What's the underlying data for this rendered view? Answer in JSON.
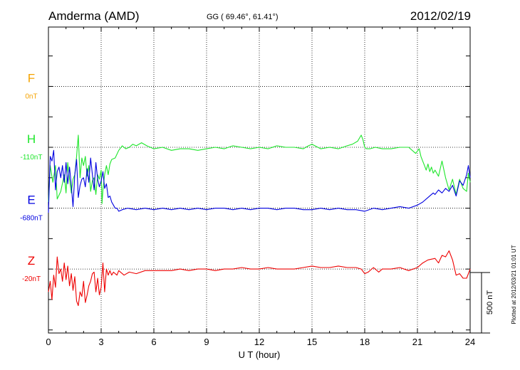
{
  "header": {
    "station": "Amderma (AMD)",
    "coords": "GG ( 69.46°,  61.41°)",
    "date": "2012/02/19"
  },
  "footer_note": "Plotted at 2012/03/21 01:01  UT",
  "chart_data": {
    "type": "line",
    "xlabel": "U T (hour)",
    "xlim": [
      0,
      24
    ],
    "xticks": [
      0,
      3,
      6,
      9,
      12,
      15,
      18,
      21,
      24
    ],
    "ylim": [
      -210,
      795
    ],
    "scale_bar": {
      "label": "500 nT",
      "value": 500
    },
    "grid": true,
    "series": [
      {
        "name": "F",
        "baseline_label": "0nT",
        "color": "#f5a300",
        "offset": 600,
        "values": []
      },
      {
        "name": "H",
        "baseline_label": "-110nT",
        "color": "#1ee62b",
        "offset": 400,
        "x": [
          0,
          0.1,
          0.25,
          0.4,
          0.5,
          0.7,
          0.9,
          1.0,
          1.1,
          1.2,
          1.3,
          1.4,
          1.5,
          1.6,
          1.7,
          1.8,
          1.9,
          2.0,
          2.1,
          2.2,
          2.3,
          2.4,
          2.5,
          2.6,
          2.7,
          2.8,
          2.9,
          3.0,
          3.05,
          3.1,
          3.2,
          3.3,
          3.4,
          3.5,
          3.6,
          3.8,
          4.0,
          4.2,
          4.4,
          4.6,
          4.8,
          5.0,
          5.3,
          5.6,
          6.0,
          6.5,
          7.0,
          7.5,
          8.0,
          8.5,
          9.0,
          9.5,
          10.0,
          10.5,
          11.0,
          11.5,
          12.0,
          12.5,
          13.0,
          13.5,
          14.0,
          14.5,
          14.8,
          15.0,
          15.5,
          16.0,
          16.5,
          17.0,
          17.3,
          17.6,
          17.8,
          17.9,
          18.0,
          18.1,
          18.3,
          18.6,
          19.0,
          19.5,
          20.0,
          20.5,
          20.9,
          21.1,
          21.2,
          21.3,
          21.4,
          21.5,
          21.6,
          21.7,
          21.8,
          21.9,
          22.0,
          22.2,
          22.4,
          22.6,
          22.8,
          23.0,
          23.2,
          23.4,
          23.6,
          23.8,
          23.9,
          24.0
        ],
        "values": [
          -180,
          -60,
          -115,
          -60,
          -170,
          -145,
          -90,
          -150,
          -50,
          -105,
          -150,
          -105,
          -90,
          -30,
          40,
          -100,
          -35,
          -60,
          -30,
          -95,
          -60,
          -145,
          -110,
          -100,
          -155,
          -90,
          -105,
          -75,
          -185,
          -140,
          -90,
          -60,
          -90,
          -55,
          -40,
          -35,
          -10,
          5,
          -5,
          0,
          10,
          5,
          15,
          5,
          -5,
          0,
          -10,
          -5,
          -5,
          -10,
          -5,
          0,
          -5,
          5,
          0,
          -5,
          0,
          -5,
          5,
          0,
          0,
          -5,
          5,
          10,
          -5,
          0,
          -5,
          5,
          10,
          20,
          40,
          25,
          0,
          -5,
          -5,
          0,
          -5,
          -5,
          0,
          0,
          -20,
          -5,
          -30,
          -45,
          -60,
          -75,
          -55,
          -80,
          -65,
          -85,
          -75,
          -95,
          -45,
          -100,
          -140,
          -105,
          -155,
          -105,
          -135,
          -145,
          -85,
          -115
        ]
      },
      {
        "name": "E",
        "baseline_label": "-680nT",
        "color": "#0000e0",
        "offset": 200,
        "x": [
          0,
          0.1,
          0.2,
          0.3,
          0.4,
          0.5,
          0.6,
          0.7,
          0.8,
          0.9,
          1.0,
          1.1,
          1.2,
          1.3,
          1.4,
          1.5,
          1.6,
          1.7,
          1.8,
          1.9,
          2.0,
          2.1,
          2.2,
          2.3,
          2.4,
          2.5,
          2.6,
          2.7,
          2.8,
          2.9,
          3.0,
          3.1,
          3.2,
          3.3,
          3.4,
          3.5,
          3.6,
          3.7,
          3.8,
          3.9,
          4.0,
          4.2,
          4.5,
          5.0,
          5.5,
          6.0,
          6.5,
          7.0,
          7.5,
          8.0,
          8.5,
          9.0,
          9.5,
          10.0,
          10.5,
          11.0,
          11.5,
          12.0,
          12.5,
          13.0,
          13.5,
          14.0,
          14.5,
          15.0,
          15.5,
          16.0,
          16.5,
          17.0,
          17.5,
          18.0,
          18.5,
          19.0,
          19.5,
          20.0,
          20.5,
          21.0,
          21.3,
          21.6,
          21.9,
          22.0,
          22.2,
          22.4,
          22.6,
          22.8,
          23.0,
          23.2,
          23.4,
          23.6,
          23.8,
          23.9,
          24.0
        ],
        "values": [
          -15,
          170,
          155,
          190,
          60,
          120,
          135,
          100,
          140,
          85,
          150,
          80,
          135,
          75,
          5,
          110,
          160,
          35,
          75,
          95,
          100,
          70,
          130,
          85,
          165,
          110,
          60,
          150,
          95,
          70,
          90,
          120,
          65,
          80,
          35,
          40,
          20,
          10,
          0,
          0,
          -10,
          -5,
          0,
          -5,
          0,
          -5,
          0,
          -5,
          0,
          -5,
          0,
          -5,
          0,
          0,
          -5,
          0,
          -5,
          0,
          0,
          -5,
          0,
          0,
          -5,
          -5,
          0,
          -5,
          0,
          -5,
          -5,
          -10,
          0,
          -5,
          0,
          5,
          0,
          10,
          20,
          35,
          50,
          45,
          60,
          50,
          65,
          55,
          75,
          40,
          90,
          75,
          110,
          140,
          100
        ]
      },
      {
        "name": "Z",
        "baseline_label": "-20nT",
        "color": "#ee0000",
        "offset": 0,
        "x": [
          0,
          0.1,
          0.2,
          0.3,
          0.4,
          0.5,
          0.6,
          0.7,
          0.8,
          0.9,
          1.0,
          1.1,
          1.2,
          1.3,
          1.4,
          1.5,
          1.6,
          1.7,
          1.8,
          1.9,
          2.0,
          2.1,
          2.2,
          2.3,
          2.4,
          2.5,
          2.6,
          2.7,
          2.8,
          2.9,
          3.0,
          3.1,
          3.2,
          3.3,
          3.4,
          3.5,
          3.6,
          3.7,
          3.8,
          3.9,
          4.0,
          4.3,
          4.6,
          5.0,
          5.5,
          6.0,
          6.5,
          7.0,
          7.5,
          8.0,
          8.5,
          9.0,
          9.5,
          10.0,
          10.5,
          11.0,
          11.5,
          12.0,
          12.5,
          13.0,
          13.5,
          14.0,
          14.5,
          15.0,
          15.5,
          16.0,
          16.5,
          17.0,
          17.5,
          17.8,
          18.0,
          18.2,
          18.5,
          18.8,
          19.0,
          19.5,
          20.0,
          20.5,
          21.0,
          21.3,
          21.6,
          22.0,
          22.2,
          22.4,
          22.6,
          22.8,
          23.0,
          23.2,
          23.4,
          23.6,
          23.8,
          24.0
        ],
        "values": [
          -75,
          -40,
          -100,
          -20,
          -60,
          40,
          -15,
          0,
          -40,
          20,
          -35,
          10,
          -55,
          -15,
          -70,
          -25,
          -105,
          -120,
          -75,
          -90,
          -40,
          -110,
          -85,
          -55,
          -40,
          -15,
          -10,
          -75,
          -30,
          -85,
          -60,
          20,
          -75,
          0,
          -20,
          -5,
          -20,
          -10,
          -15,
          -20,
          -5,
          -20,
          -10,
          -15,
          -5,
          -5,
          -5,
          -5,
          0,
          -5,
          0,
          0,
          -5,
          0,
          0,
          5,
          0,
          0,
          5,
          0,
          0,
          0,
          5,
          10,
          5,
          5,
          10,
          5,
          5,
          0,
          -15,
          -10,
          5,
          -10,
          0,
          0,
          5,
          -5,
          5,
          20,
          30,
          35,
          20,
          45,
          40,
          60,
          30,
          -20,
          -15,
          -30,
          -30,
          0
        ]
      }
    ]
  }
}
